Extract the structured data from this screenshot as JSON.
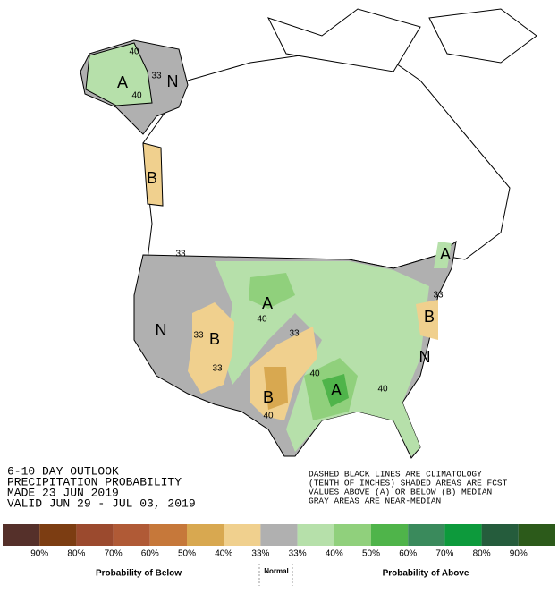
{
  "map_labels": [
    "40",
    "A",
    "40",
    "33",
    "N",
    "B",
    "33",
    "A",
    "40",
    "33",
    "N",
    "33",
    "B",
    "33",
    "B",
    "40",
    "40",
    "A",
    "40",
    "N",
    "B",
    "33",
    "A"
  ],
  "info_left": [
    "6-10 DAY OUTLOOK",
    "PRECIPITATION PROBABILITY",
    "MADE  23 JUN 2019",
    "VALID  JUN 29 - JUL 03, 2019"
  ],
  "info_right": [
    "DASHED BLACK LINES ARE CLIMATOLOGY",
    "(TENTH OF INCHES) SHADED AREAS ARE FCST",
    "VALUES ABOVE (A) OR BELOW (B) MEDIAN",
    "GRAY AREAS ARE NEAR-MEDIAN"
  ],
  "legend": {
    "labels": [
      "90%",
      "80%",
      "70%",
      "60%",
      "50%",
      "40%",
      "33%",
      "33%",
      "40%",
      "50%",
      "60%",
      "70%",
      "80%",
      "90%"
    ],
    "colors": [
      "#55302a",
      "#7c3d12",
      "#9b4a2e",
      "#b05a36",
      "#c6783a",
      "#d8a850",
      "#f0d08e",
      "#b0b0b0",
      "#b6e0aa",
      "#90d07c",
      "#4fb44a",
      "#3a8a5c",
      "#0d9a3c",
      "#255c3c",
      "#2c5a1a"
    ],
    "below": "Probability of Below",
    "normal": "Normal",
    "above": "Probability of Above"
  }
}
